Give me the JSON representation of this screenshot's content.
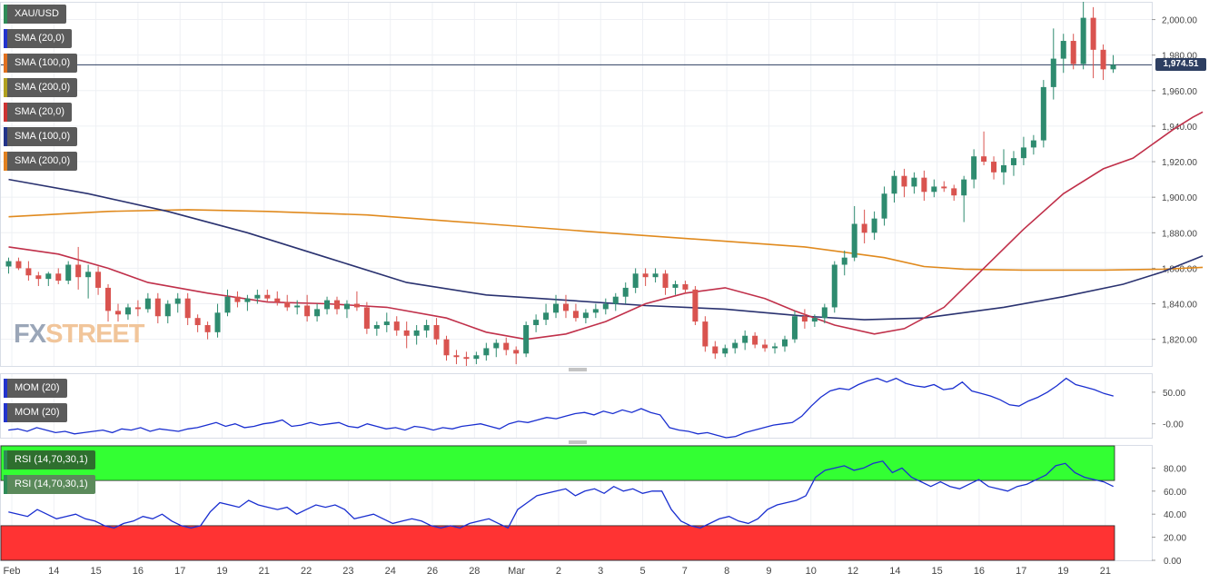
{
  "chart_data": [
    {
      "type": "candlestick",
      "symbol": "XAU/USD",
      "legend": [
        "XAU/USD",
        "SMA (20,0)",
        "SMA (100,0)",
        "SMA (200,0)",
        "SMA (20,0)",
        "SMA (100,0)",
        "SMA (200,0)"
      ],
      "legend_colors": [
        "#2e8b57",
        "#2233cc",
        "#e07020",
        "#b0a020",
        "#cc3333",
        "#223388",
        "#e08020"
      ],
      "last_price_label": "1,974.51",
      "last_price": 1974.51,
      "ylim": [
        1805,
        2010
      ],
      "y_ticks": [
        1820,
        1840,
        1860,
        1880,
        1900,
        1920,
        1940,
        1960,
        1980,
        2000
      ],
      "y_tick_labels": [
        "1,820.00",
        "1,840.00",
        "1,860.00",
        "1,880.00",
        "1,900.00",
        "1,920.00",
        "1,940.00",
        "1,960.00",
        "1,980.00",
        "2,000.00"
      ],
      "x_labels": [
        "Feb",
        "14",
        "15",
        "16",
        "17",
        "19",
        "21",
        "22",
        "23",
        "24",
        "26",
        "28",
        "Mar",
        "2",
        "3",
        "5",
        "7",
        "8",
        "9",
        "10",
        "12",
        "14",
        "15",
        "16",
        "17",
        "19",
        "21"
      ],
      "candles": [
        [
          1861,
          1866,
          1857,
          1864
        ],
        [
          1864,
          1866,
          1859,
          1860
        ],
        [
          1860,
          1864,
          1853,
          1856
        ],
        [
          1856,
          1858,
          1850,
          1854
        ],
        [
          1854,
          1858,
          1850,
          1857
        ],
        [
          1857,
          1860,
          1851,
          1853
        ],
        [
          1853,
          1864,
          1851,
          1862
        ],
        [
          1862,
          1872,
          1848,
          1855
        ],
        [
          1855,
          1862,
          1843,
          1858
        ],
        [
          1858,
          1861,
          1845,
          1849
        ],
        [
          1849,
          1851,
          1830,
          1836
        ],
        [
          1836,
          1840,
          1830,
          1834
        ],
        [
          1834,
          1840,
          1831,
          1838
        ],
        [
          1838,
          1842,
          1833,
          1837
        ],
        [
          1837,
          1846,
          1835,
          1843
        ],
        [
          1843,
          1846,
          1829,
          1833
        ],
        [
          1833,
          1842,
          1829,
          1840
        ],
        [
          1840,
          1846,
          1835,
          1843
        ],
        [
          1843,
          1846,
          1828,
          1832
        ],
        [
          1832,
          1834,
          1824,
          1828
        ],
        [
          1828,
          1830,
          1820,
          1824
        ],
        [
          1824,
          1840,
          1821,
          1835
        ],
        [
          1835,
          1848,
          1833,
          1844
        ],
        [
          1844,
          1847,
          1838,
          1841
        ],
        [
          1841,
          1845,
          1836,
          1843
        ],
        [
          1843,
          1848,
          1840,
          1845
        ],
        [
          1845,
          1848,
          1841,
          1843
        ],
        [
          1843,
          1847,
          1839,
          1841
        ],
        [
          1841,
          1845,
          1836,
          1838
        ],
        [
          1838,
          1842,
          1834,
          1839
        ],
        [
          1839,
          1845,
          1830,
          1833
        ],
        [
          1833,
          1840,
          1830,
          1837
        ],
        [
          1837,
          1844,
          1834,
          1842
        ],
        [
          1842,
          1844,
          1834,
          1837
        ],
        [
          1837,
          1842,
          1832,
          1840
        ],
        [
          1840,
          1847,
          1836,
          1838
        ],
        [
          1838,
          1841,
          1823,
          1826
        ],
        [
          1826,
          1830,
          1822,
          1828
        ],
        [
          1828,
          1835,
          1824,
          1830
        ],
        [
          1830,
          1833,
          1822,
          1825
        ],
        [
          1825,
          1830,
          1815,
          1822
        ],
        [
          1822,
          1828,
          1817,
          1825
        ],
        [
          1825,
          1831,
          1821,
          1828
        ],
        [
          1828,
          1832,
          1817,
          1820
        ],
        [
          1820,
          1822,
          1808,
          1811
        ],
        [
          1811,
          1814,
          1806,
          1810
        ],
        [
          1810,
          1813,
          1805,
          1809
        ],
        [
          1809,
          1813,
          1806,
          1811
        ],
        [
          1811,
          1818,
          1808,
          1815
        ],
        [
          1815,
          1820,
          1810,
          1818
        ],
        [
          1818,
          1821,
          1811,
          1814
        ],
        [
          1814,
          1816,
          1806,
          1812
        ],
        [
          1812,
          1830,
          1810,
          1828
        ],
        [
          1828,
          1834,
          1824,
          1831
        ],
        [
          1831,
          1840,
          1828,
          1835
        ],
        [
          1835,
          1845,
          1832,
          1840
        ],
        [
          1840,
          1845,
          1832,
          1836
        ],
        [
          1836,
          1840,
          1830,
          1832
        ],
        [
          1832,
          1837,
          1829,
          1835
        ],
        [
          1835,
          1840,
          1832,
          1837
        ],
        [
          1837,
          1843,
          1834,
          1840
        ],
        [
          1840,
          1846,
          1836,
          1844
        ],
        [
          1844,
          1852,
          1840,
          1849
        ],
        [
          1849,
          1860,
          1846,
          1857
        ],
        [
          1857,
          1860,
          1850,
          1855
        ],
        [
          1855,
          1860,
          1852,
          1857
        ],
        [
          1857,
          1859,
          1845,
          1849
        ],
        [
          1849,
          1853,
          1845,
          1851
        ],
        [
          1851,
          1853,
          1846,
          1848
        ],
        [
          1848,
          1850,
          1828,
          1830
        ],
        [
          1830,
          1833,
          1813,
          1816
        ],
        [
          1816,
          1819,
          1809,
          1812
        ],
        [
          1812,
          1817,
          1810,
          1815
        ],
        [
          1815,
          1820,
          1812,
          1818
        ],
        [
          1818,
          1825,
          1814,
          1822
        ],
        [
          1822,
          1824,
          1815,
          1817
        ],
        [
          1817,
          1820,
          1813,
          1815
        ],
        [
          1815,
          1818,
          1812,
          1816
        ],
        [
          1816,
          1822,
          1813,
          1820
        ],
        [
          1820,
          1836,
          1818,
          1833
        ],
        [
          1833,
          1837,
          1826,
          1830
        ],
        [
          1830,
          1834,
          1827,
          1832
        ],
        [
          1832,
          1840,
          1829,
          1838
        ],
        [
          1838,
          1864,
          1835,
          1862
        ],
        [
          1862,
          1870,
          1856,
          1866
        ],
        [
          1866,
          1895,
          1864,
          1885
        ],
        [
          1885,
          1893,
          1874,
          1880
        ],
        [
          1880,
          1892,
          1876,
          1888
        ],
        [
          1888,
          1906,
          1884,
          1902
        ],
        [
          1902,
          1915,
          1897,
          1912
        ],
        [
          1912,
          1916,
          1900,
          1906
        ],
        [
          1906,
          1914,
          1902,
          1911
        ],
        [
          1911,
          1915,
          1898,
          1903
        ],
        [
          1903,
          1910,
          1900,
          1906
        ],
        [
          1906,
          1909,
          1903,
          1905
        ],
        [
          1905,
          1907,
          1898,
          1901
        ],
        [
          1901,
          1912,
          1886,
          1910
        ],
        [
          1910,
          1927,
          1905,
          1923
        ],
        [
          1923,
          1937,
          1918,
          1920
        ],
        [
          1920,
          1923,
          1910,
          1914
        ],
        [
          1914,
          1927,
          1907,
          1918
        ],
        [
          1918,
          1926,
          1912,
          1922
        ],
        [
          1922,
          1934,
          1918,
          1928
        ],
        [
          1928,
          1935,
          1924,
          1932
        ],
        [
          1932,
          1966,
          1928,
          1962
        ],
        [
          1962,
          1995,
          1955,
          1978
        ],
        [
          1978,
          1992,
          1970,
          1988
        ],
        [
          1988,
          1992,
          1972,
          1975
        ],
        [
          1975,
          2010,
          1972,
          2001
        ],
        [
          2001,
          2007,
          1967,
          1983
        ],
        [
          1983,
          1986,
          1966,
          1972
        ],
        [
          1972,
          1980,
          1970,
          1974.51
        ]
      ],
      "sma20": [
        [
          0,
          1872
        ],
        [
          5,
          1868
        ],
        [
          10,
          1860
        ],
        [
          14,
          1852
        ],
        [
          20,
          1846
        ],
        [
          26,
          1841
        ],
        [
          32,
          1840
        ],
        [
          38,
          1838
        ],
        [
          44,
          1832
        ],
        [
          48,
          1824
        ],
        [
          52,
          1820
        ],
        [
          56,
          1823
        ],
        [
          60,
          1830
        ],
        [
          64,
          1840
        ],
        [
          68,
          1846
        ],
        [
          72,
          1849
        ],
        [
          76,
          1843
        ],
        [
          79,
          1836
        ],
        [
          83,
          1828
        ],
        [
          87,
          1823
        ],
        [
          90,
          1826
        ],
        [
          94,
          1838
        ],
        [
          98,
          1860
        ],
        [
          102,
          1882
        ],
        [
          106,
          1902
        ],
        [
          110,
          1916
        ],
        [
          113,
          1922
        ],
        [
          115,
          1930
        ],
        [
          117,
          1938
        ],
        [
          119,
          1945
        ],
        [
          120,
          1948
        ]
      ],
      "sma100": [
        [
          0,
          1910
        ],
        [
          8,
          1902
        ],
        [
          16,
          1892
        ],
        [
          24,
          1880
        ],
        [
          32,
          1866
        ],
        [
          40,
          1852
        ],
        [
          48,
          1845
        ],
        [
          56,
          1842
        ],
        [
          64,
          1839
        ],
        [
          72,
          1837
        ],
        [
          80,
          1833
        ],
        [
          86,
          1831
        ],
        [
          92,
          1832
        ],
        [
          100,
          1838
        ],
        [
          106,
          1844
        ],
        [
          112,
          1851
        ],
        [
          116,
          1858
        ],
        [
          120,
          1867
        ]
      ],
      "sma200": [
        [
          0,
          1889
        ],
        [
          10,
          1892
        ],
        [
          18,
          1893
        ],
        [
          26,
          1892
        ],
        [
          36,
          1890
        ],
        [
          48,
          1885
        ],
        [
          60,
          1880
        ],
        [
          70,
          1876
        ],
        [
          80,
          1872
        ],
        [
          88,
          1866
        ],
        [
          92,
          1861
        ],
        [
          96,
          1859.5
        ],
        [
          102,
          1859
        ],
        [
          110,
          1859
        ],
        [
          116,
          1859.5
        ],
        [
          120,
          1860.5
        ]
      ]
    },
    {
      "type": "line",
      "indicator": "MOM (20)",
      "legend": [
        "MOM (20)",
        "MOM (20)"
      ],
      "ylim": [
        -22,
        80
      ],
      "y_ticks": [
        0,
        50
      ],
      "y_tick_labels": [
        "0.00",
        "50.00"
      ],
      "values": [
        -10,
        -8,
        -12,
        -6,
        -10,
        -14,
        -12,
        -16,
        -14,
        -12,
        -10,
        -14,
        -8,
        -10,
        -6,
        -12,
        -8,
        -10,
        -12,
        -8,
        -6,
        -2,
        2,
        -4,
        0,
        -6,
        -4,
        0,
        2,
        6,
        -4,
        -2,
        2,
        -2,
        0,
        2,
        -4,
        -6,
        0,
        -4,
        -8,
        -6,
        -10,
        -4,
        -6,
        -10,
        -6,
        -8,
        -4,
        -2,
        0,
        -4,
        -8,
        0,
        4,
        2,
        6,
        10,
        8,
        12,
        16,
        18,
        14,
        20,
        16,
        22,
        18,
        24,
        18,
        14,
        -6,
        -10,
        -12,
        -16,
        -14,
        -18,
        -22,
        -20,
        -14,
        -10,
        -6,
        -2,
        0,
        2,
        12,
        28,
        42,
        52,
        56,
        54,
        62,
        68,
        72,
        66,
        72,
        64,
        60,
        58,
        62,
        54,
        56,
        66,
        52,
        48,
        44,
        38,
        30,
        28,
        36,
        42,
        50,
        60,
        72,
        62,
        58,
        54,
        48,
        44
      ],
      "values_note": "",
      "line_color": "#1a2fd0"
    },
    {
      "type": "line",
      "indicator": "RSI (14,70,30,1)",
      "legend": [
        "RSI (14,70,30,1)",
        "RSI (14,70,30,1)"
      ],
      "ylim": [
        0,
        100
      ],
      "overbought": 70,
      "oversold": 30,
      "y_ticks": [
        0,
        20,
        40,
        60,
        80
      ],
      "y_tick_labels": [
        "0.00",
        "20.00",
        "40.00",
        "60.00",
        "80.00"
      ],
      "values": [
        42,
        40,
        38,
        44,
        40,
        36,
        38,
        40,
        36,
        34,
        30,
        28,
        32,
        34,
        38,
        36,
        40,
        34,
        30,
        28,
        30,
        42,
        50,
        48,
        46,
        52,
        48,
        46,
        44,
        46,
        40,
        44,
        48,
        46,
        48,
        44,
        36,
        38,
        40,
        36,
        32,
        34,
        36,
        34,
        30,
        28,
        30,
        28,
        32,
        34,
        36,
        32,
        28,
        44,
        50,
        56,
        58,
        60,
        62,
        56,
        60,
        62,
        58,
        64,
        60,
        62,
        58,
        60,
        60,
        44,
        34,
        30,
        28,
        32,
        36,
        38,
        34,
        32,
        36,
        44,
        48,
        50,
        52,
        56,
        72,
        78,
        80,
        82,
        78,
        80,
        84,
        86,
        76,
        80,
        72,
        68,
        64,
        68,
        64,
        62,
        66,
        70,
        64,
        62,
        60,
        64,
        66,
        70,
        74,
        82,
        84,
        76,
        72,
        70,
        68,
        64
      ],
      "overbought_color": "#33ff33",
      "oversold_color": "#ff3333",
      "line_color": "#1a2fd0"
    }
  ]
}
